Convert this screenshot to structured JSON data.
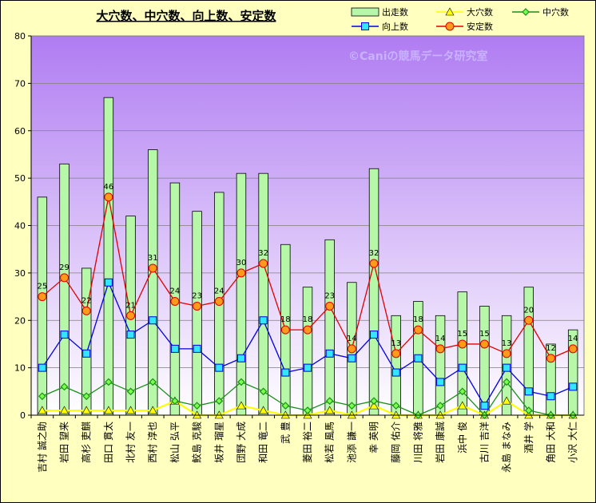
{
  "chart_data": {
    "type": "bar",
    "title": "大穴数、中穴数、向上数、安定数",
    "watermark": "©Caniの競馬データ研究室",
    "ylim": [
      0,
      80
    ],
    "yticks": [
      0,
      10,
      20,
      30,
      40,
      50,
      60,
      70,
      80
    ],
    "grid": true,
    "legend_position": "top-right",
    "categories": [
      "吉村 誠之助",
      "岩田 望来",
      "高杉 吏麒",
      "田口 貫太",
      "北村 友一",
      "西村 淳也",
      "松山 弘平",
      "鮫島 克駿",
      "坂井 瑠星",
      "団野 大成",
      "和田 竜二",
      "武 豊",
      "菱田 裕二",
      "松若 風馬",
      "池添 謙一",
      "幸 英明",
      "藤岡 佑介",
      "川田 将雅",
      "岩田 康誠",
      "浜中 俊",
      "古川 吉洋",
      "永島 まなみ",
      "酒井 学",
      "角田 大和",
      "小沢 大仁"
    ],
    "series": [
      {
        "name": "出走数",
        "kind": "bar",
        "color": "#b6f7a8",
        "values": [
          46,
          53,
          31,
          67,
          42,
          56,
          49,
          43,
          47,
          51,
          51,
          36,
          27,
          37,
          28,
          52,
          21,
          24,
          21,
          26,
          23,
          21,
          27,
          15,
          18
        ]
      },
      {
        "name": "大穴数",
        "kind": "line",
        "color": "#ffff00",
        "marker": "triangle",
        "values": [
          1,
          1,
          1,
          1,
          1,
          1,
          3,
          0,
          0,
          2,
          1,
          0,
          0,
          1,
          0,
          2,
          0,
          0,
          0,
          2,
          0,
          3,
          0,
          0,
          0
        ]
      },
      {
        "name": "中穴数",
        "kind": "line",
        "color": "#1a8f1a",
        "marker": "diamond",
        "values": [
          4,
          6,
          4,
          7,
          5,
          7,
          3,
          2,
          3,
          7,
          5,
          2,
          1,
          3,
          2,
          3,
          2,
          0,
          2,
          5,
          0,
          7,
          1,
          0,
          0
        ]
      },
      {
        "name": "向上数",
        "kind": "line",
        "color": "#0000e0",
        "marker": "square",
        "values": [
          10,
          17,
          13,
          28,
          17,
          20,
          14,
          14,
          10,
          12,
          20,
          9,
          10,
          13,
          12,
          17,
          9,
          12,
          7,
          10,
          2,
          10,
          5,
          4,
          6
        ]
      },
      {
        "name": "安定数",
        "kind": "line",
        "color": "#e00000",
        "marker": "circle",
        "values": [
          25,
          29,
          22,
          46,
          21,
          31,
          24,
          23,
          24,
          30,
          32,
          18,
          18,
          23,
          14,
          32,
          13,
          18,
          14,
          15,
          15,
          13,
          20,
          12,
          14
        ]
      }
    ]
  }
}
